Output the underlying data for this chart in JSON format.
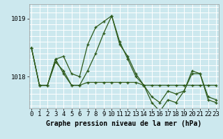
{
  "title": "Graphe pression niveau de la mer (hPa)",
  "background_color": "#cce8ee",
  "grid_color": "#ffffff",
  "line_color": "#2d5a1b",
  "hours": [
    0,
    1,
    2,
    3,
    4,
    5,
    6,
    7,
    8,
    9,
    10,
    11,
    12,
    13,
    14,
    15,
    16,
    17,
    18,
    19,
    20,
    21,
    22,
    23
  ],
  "series": [
    [
      1018.5,
      1017.85,
      1017.85,
      1018.3,
      1018.35,
      1018.05,
      1018.0,
      1018.55,
      1018.85,
      1018.95,
      1019.05,
      1018.55,
      1018.35,
      1018.05,
      1017.85,
      1017.65,
      1017.55,
      1017.75,
      1017.7,
      1017.75,
      1018.05,
      1018.05,
      1017.65,
      1017.6
    ],
    [
      1018.5,
      1017.85,
      1017.85,
      1018.3,
      1018.05,
      1017.85,
      1017.85,
      1017.9,
      1017.9,
      1017.9,
      1017.9,
      1017.9,
      1017.9,
      1017.9,
      1017.85,
      1017.85,
      1017.85,
      1017.85,
      1017.85,
      1017.85,
      1017.85,
      1017.85,
      1017.85,
      1017.85
    ],
    [
      1018.5,
      1017.85,
      1017.85,
      1018.25,
      1018.1,
      1017.85,
      1017.85,
      1018.1,
      1018.4,
      1018.75,
      1019.05,
      1018.6,
      1018.3,
      1018.0,
      1017.85,
      1017.55,
      1017.4,
      1017.6,
      1017.55,
      1017.75,
      1018.1,
      1018.05,
      1017.6,
      1017.55
    ]
  ],
  "ylim_min": 1017.45,
  "ylim_max": 1019.25,
  "yticks": [
    1018,
    1019
  ],
  "tick_fontsize": 6.5,
  "title_fontsize": 7.0
}
